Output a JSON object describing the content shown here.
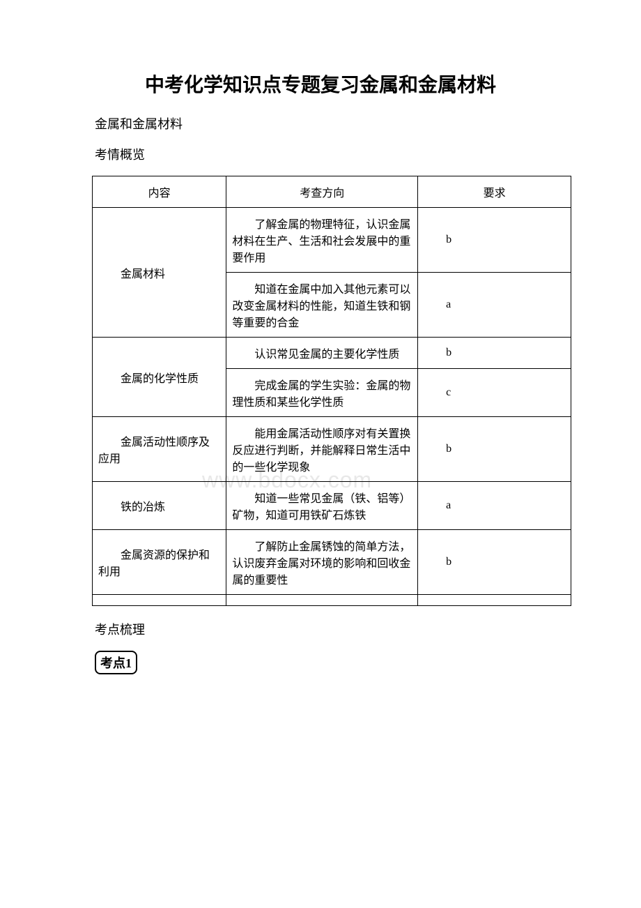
{
  "title": "中考化学知识点专题复习金属和金属材料",
  "subtitle": "金属和金属材料",
  "overview_label": "考情概览",
  "summary_label": "考点梳理",
  "badge": "考点1",
  "watermark": "www.bdocx.com",
  "table": {
    "columns": [
      "内容",
      "考查方向",
      "要求"
    ],
    "col_widths": [
      "28%",
      "40%",
      "32%"
    ],
    "border_color": "#000000",
    "font_size": 16,
    "rows": [
      {
        "content": "金属材料",
        "direction": "了解金属的物理特征，认识金属材料在生产、生活和社会发展中的重要作用",
        "req": "b",
        "rowspan": 2
      },
      {
        "content": null,
        "direction": "知道在金属中加入其他元素可以改变金属材料的性能，知道生铁和钢等重要的合金",
        "req": "a"
      },
      {
        "content": "金属的化学性质",
        "direction": "认识常见金属的主要化学性质",
        "req": "b",
        "rowspan": 2
      },
      {
        "content": null,
        "direction": "完成金属的学生实验：金属的物理性质和某些化学性质",
        "req": "c"
      },
      {
        "content": "金属活动性顺序及应用",
        "direction": "能用金属活动性顺序对有关置换反应进行判断，并能解释日常生活中的一些化学现象",
        "req": "b",
        "rowspan": 1
      },
      {
        "content": "铁的冶炼",
        "direction": "知道一些常见金属（铁、铝等）矿物，知道可用铁矿石炼铁",
        "req": "a",
        "rowspan": 1
      },
      {
        "content": "金属资源的保护和利用",
        "direction": "了解防止金属锈蚀的简单方法，认识废弃金属对环境的影响和回收金属的重要性",
        "req": "b",
        "rowspan": 1
      }
    ]
  }
}
